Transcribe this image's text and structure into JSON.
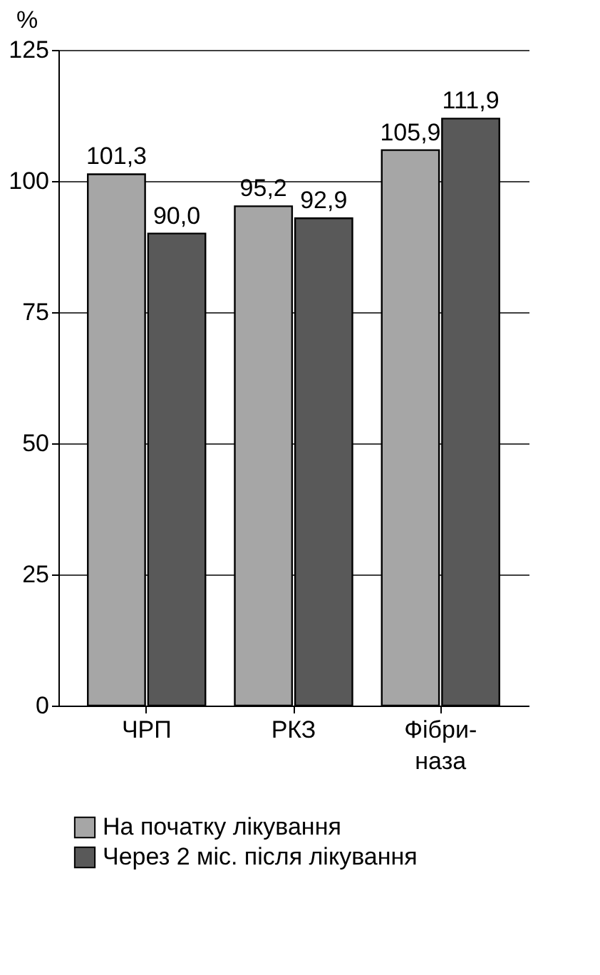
{
  "chart_data": {
    "type": "bar",
    "ylabel": "%",
    "categories": [
      "ЧРП",
      "РКЗ",
      "Фібри-\nназа"
    ],
    "series": [
      {
        "name": "На початку лікування",
        "color": "#a6a6a6",
        "values": [
          101.3,
          95.2,
          105.9
        ],
        "value_labels": [
          "101,3",
          "95,2",
          "105,9"
        ]
      },
      {
        "name": "Через 2 міс. після лікування",
        "color": "#595959",
        "values": [
          90.0,
          92.9,
          111.9
        ],
        "value_labels": [
          "90,0",
          "92,9",
          "111,9"
        ]
      }
    ],
    "ylim": [
      0,
      125
    ],
    "yticks": [
      0,
      25,
      50,
      75,
      100,
      125
    ],
    "grid": "y",
    "legend": "bottom"
  }
}
